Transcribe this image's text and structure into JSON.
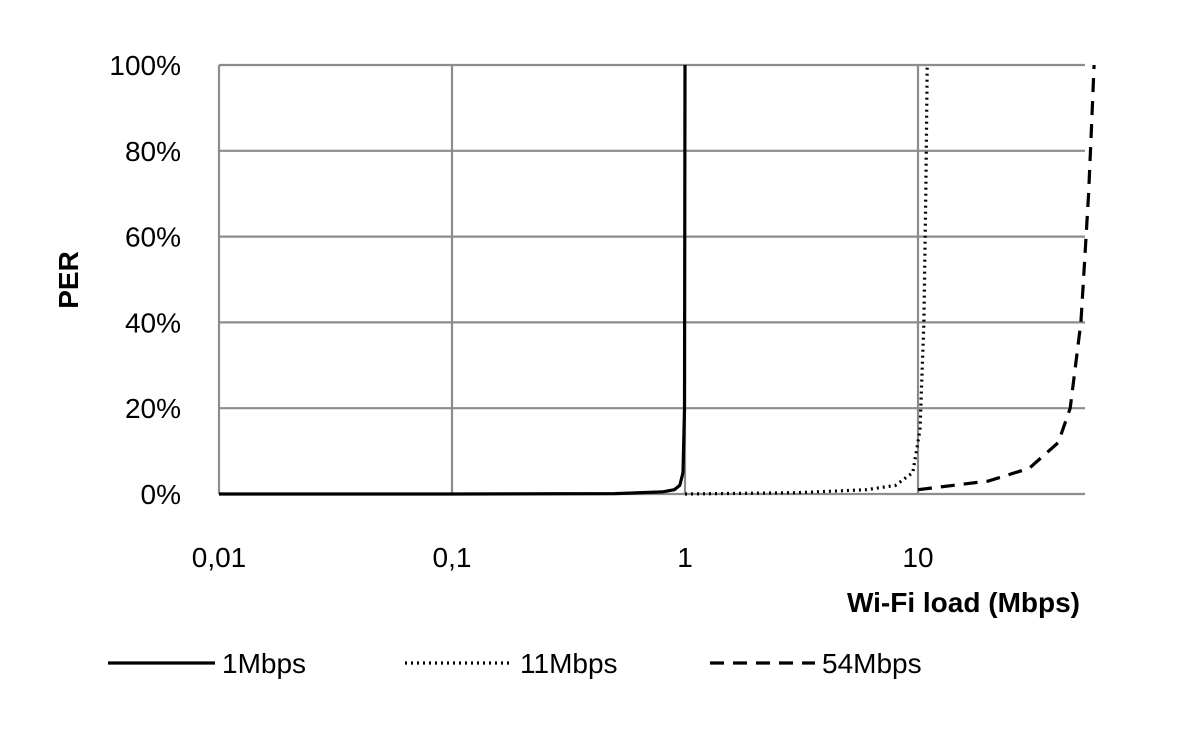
{
  "chart_data": {
    "type": "line",
    "xlabel": "Wi-Fi load (Mbps)",
    "ylabel": "PER",
    "xscale": "log",
    "xlim": [
      0.01,
      60
    ],
    "ylim": [
      0,
      100
    ],
    "x_ticks": [
      0.01,
      0.1,
      1,
      10
    ],
    "x_tick_labels": [
      "0,01",
      "0,1",
      "1",
      "10"
    ],
    "y_ticks": [
      0,
      20,
      40,
      60,
      80,
      100
    ],
    "y_tick_labels": [
      "0%",
      "20%",
      "40%",
      "60%",
      "80%",
      "100%"
    ],
    "grid": true,
    "legend_position": "bottom",
    "series": [
      {
        "name": "1Mbps",
        "style": "solid",
        "x": [
          0.01,
          0.1,
          0.5,
          0.8,
          0.9,
          0.95,
          0.98,
          0.995,
          1.0
        ],
        "y": [
          0,
          0,
          0.1,
          0.5,
          1,
          2,
          5,
          20,
          100
        ]
      },
      {
        "name": "11Mbps",
        "style": "dotted",
        "x": [
          1,
          3,
          6,
          8,
          9.5,
          10.2,
          10.6,
          10.8,
          10.95
        ],
        "y": [
          0,
          0.3,
          1,
          2,
          5,
          15,
          40,
          70,
          100
        ]
      },
      {
        "name": "54Mbps",
        "style": "dashed",
        "x": [
          10,
          20,
          30,
          40,
          45,
          50,
          52,
          54,
          55.5,
          57
        ],
        "y": [
          1,
          3,
          6,
          12,
          20,
          40,
          55,
          70,
          85,
          100
        ]
      }
    ]
  },
  "colors": {
    "grid": "#8c8c8c",
    "line": "#000000"
  }
}
